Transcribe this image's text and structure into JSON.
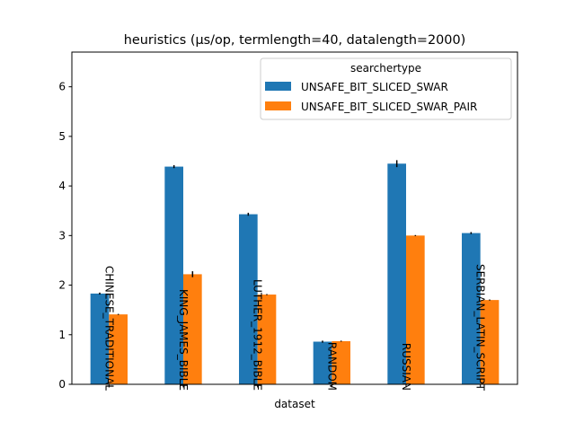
{
  "chart_data": {
    "type": "bar",
    "title": "heuristics (µs/op, termlength=40, datalength=2000)",
    "xlabel": "dataset",
    "ylabel": "",
    "ylim": [
      0,
      6.7
    ],
    "yticks": [
      0,
      1,
      2,
      3,
      4,
      5,
      6
    ],
    "grid": false,
    "legend_title": "searchertype",
    "legend_position": "top-right",
    "categories": [
      "CHINESE_TRADITIONAL",
      "KING_JAMES_BIBLE",
      "LUTHER_1912_BIBLE",
      "RANDOM",
      "RUSSIAN",
      "SERBIAN_LATIN_SCRIPT"
    ],
    "series": [
      {
        "name": "UNSAFE_BIT_SLICED_SWAR",
        "color": "#1f77b4",
        "values": [
          1.83,
          4.39,
          3.43,
          0.86,
          4.45,
          3.05
        ],
        "errors": [
          0.02,
          0.03,
          0.03,
          0.02,
          0.07,
          0.02
        ]
      },
      {
        "name": "UNSAFE_BIT_SLICED_SWAR_PAIR",
        "color": "#ff7f0e",
        "values": [
          1.41,
          2.22,
          1.81,
          0.87,
          3.0,
          1.7
        ],
        "errors": [
          0.01,
          0.06,
          0.01,
          0.01,
          0.01,
          0.01
        ]
      }
    ]
  }
}
